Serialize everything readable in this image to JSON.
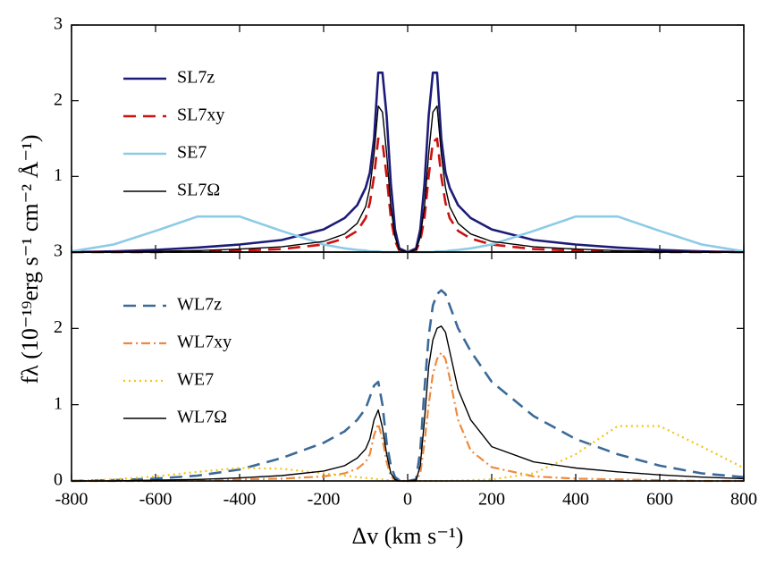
{
  "chart_data": [
    {
      "type": "line",
      "ylabel": "fλ  (10⁻¹⁹erg s⁻¹ cm⁻² Å⁻¹)",
      "x": [
        -800,
        -700,
        -600,
        -500,
        -400,
        -300,
        -200,
        -150,
        -120,
        -100,
        -90,
        -80,
        -70,
        -60,
        -50,
        -40,
        -30,
        -20,
        0,
        20,
        30,
        40,
        50,
        60,
        70,
        80,
        90,
        100,
        120,
        150,
        200,
        300,
        400,
        500,
        600,
        700,
        800
      ],
      "xlim": [
        -800,
        800
      ],
      "xticks": [
        -800,
        -600,
        -400,
        -200,
        0,
        200,
        400,
        600,
        800
      ],
      "ylim": [
        0,
        3
      ],
      "yticks": [
        1,
        2,
        3
      ],
      "legend": "upper left",
      "series": [
        {
          "name": "SL7z",
          "color": "#1c1c78",
          "linestyle": "solid",
          "values": [
            0,
            0.01,
            0.03,
            0.06,
            0.1,
            0.16,
            0.3,
            0.45,
            0.62,
            0.85,
            1.05,
            1.5,
            2.37,
            2.37,
            1.8,
            0.9,
            0.3,
            0.05,
            0,
            0.05,
            0.3,
            0.9,
            1.8,
            2.37,
            2.37,
            1.5,
            1.05,
            0.85,
            0.62,
            0.45,
            0.3,
            0.16,
            0.1,
            0.06,
            0.03,
            0.01,
            0
          ]
        },
        {
          "name": "SL7xy",
          "color": "#cc1111",
          "linestyle": "dashed",
          "values": [
            0,
            0,
            0,
            0.01,
            0.02,
            0.04,
            0.1,
            0.18,
            0.28,
            0.45,
            0.65,
            1.0,
            1.5,
            1.45,
            1.0,
            0.45,
            0.15,
            0.02,
            0,
            0.02,
            0.15,
            0.45,
            1.0,
            1.45,
            1.5,
            1.0,
            0.65,
            0.45,
            0.28,
            0.18,
            0.1,
            0.04,
            0.02,
            0.01,
            0,
            0,
            0
          ]
        },
        {
          "name": "SE7",
          "color": "#8ccbe6",
          "linestyle": "solid",
          "values": [
            0.01,
            0.1,
            0.28,
            0.47,
            0.47,
            0.28,
            0.1,
            0.05,
            0.03,
            0.02,
            0.01,
            0.01,
            0.01,
            0,
            0,
            0,
            0,
            0,
            0,
            0,
            0,
            0,
            0,
            0,
            0.01,
            0.01,
            0.01,
            0.02,
            0.03,
            0.05,
            0.1,
            0.28,
            0.47,
            0.47,
            0.28,
            0.1,
            0.01
          ]
        },
        {
          "name": "SL7Ω",
          "color": "#000000",
          "linestyle": "thin",
          "values": [
            0,
            0,
            0.01,
            0.02,
            0.04,
            0.07,
            0.14,
            0.24,
            0.38,
            0.6,
            0.85,
            1.3,
            1.93,
            1.85,
            1.3,
            0.6,
            0.2,
            0.03,
            0,
            0.03,
            0.2,
            0.6,
            1.3,
            1.85,
            1.93,
            1.3,
            0.85,
            0.6,
            0.38,
            0.24,
            0.14,
            0.07,
            0.04,
            0.02,
            0.01,
            0,
            0
          ]
        }
      ]
    },
    {
      "type": "line",
      "xlabel": "Δv  (km s⁻¹)",
      "x": [
        -800,
        -700,
        -600,
        -500,
        -400,
        -300,
        -200,
        -150,
        -120,
        -100,
        -90,
        -80,
        -70,
        -60,
        -50,
        -40,
        -30,
        -20,
        0,
        20,
        30,
        40,
        50,
        60,
        70,
        80,
        90,
        100,
        120,
        150,
        200,
        300,
        400,
        500,
        600,
        700,
        800
      ],
      "xlim": [
        -800,
        800
      ],
      "xticks": [
        -800,
        -600,
        -400,
        -200,
        0,
        200,
        400,
        600,
        800
      ],
      "ylim": [
        0,
        3
      ],
      "yticks": [
        0,
        1,
        2,
        3
      ],
      "legend": "upper left",
      "series": [
        {
          "name": "WL7z",
          "color": "#3b6a98",
          "linestyle": "dashed",
          "values": [
            0,
            0.01,
            0.03,
            0.07,
            0.15,
            0.3,
            0.5,
            0.65,
            0.8,
            0.95,
            1.1,
            1.25,
            1.3,
            1.0,
            0.5,
            0.2,
            0.05,
            0.01,
            0,
            0.02,
            0.4,
            1.2,
            1.9,
            2.3,
            2.45,
            2.5,
            2.45,
            2.3,
            2.0,
            1.7,
            1.3,
            0.85,
            0.55,
            0.35,
            0.2,
            0.1,
            0.05
          ]
        },
        {
          "name": "WL7xy",
          "color": "#ee8a3e",
          "linestyle": "dashdot",
          "values": [
            0,
            0,
            0,
            0.01,
            0.02,
            0.03,
            0.06,
            0.1,
            0.16,
            0.25,
            0.35,
            0.6,
            0.75,
            0.55,
            0.25,
            0.06,
            0.01,
            0,
            0,
            0,
            0.1,
            0.5,
            1.0,
            1.4,
            1.6,
            1.68,
            1.6,
            1.35,
            0.8,
            0.4,
            0.18,
            0.06,
            0.03,
            0.02,
            0.01,
            0,
            0
          ]
        },
        {
          "name": "WE7",
          "color": "#f2c414",
          "linestyle": "dotted",
          "values": [
            0,
            0.02,
            0.06,
            0.12,
            0.17,
            0.16,
            0.1,
            0.07,
            0.05,
            0.04,
            0.035,
            0.03,
            0.02,
            0.02,
            0.01,
            0.01,
            0.005,
            0.005,
            0,
            0,
            0,
            0,
            0,
            0,
            0,
            0,
            0,
            0.005,
            0.005,
            0.01,
            0.02,
            0.1,
            0.35,
            0.72,
            0.72,
            0.45,
            0.17
          ]
        },
        {
          "name": "WL7Ω",
          "color": "#000000",
          "linestyle": "thin",
          "values": [
            0,
            0,
            0.01,
            0.02,
            0.04,
            0.07,
            0.13,
            0.2,
            0.3,
            0.42,
            0.55,
            0.8,
            0.93,
            0.7,
            0.35,
            0.1,
            0.02,
            0,
            0,
            0.01,
            0.2,
            0.8,
            1.5,
            1.85,
            2.0,
            2.03,
            1.95,
            1.7,
            1.2,
            0.8,
            0.45,
            0.25,
            0.17,
            0.12,
            0.08,
            0.05,
            0.03
          ]
        }
      ]
    }
  ]
}
